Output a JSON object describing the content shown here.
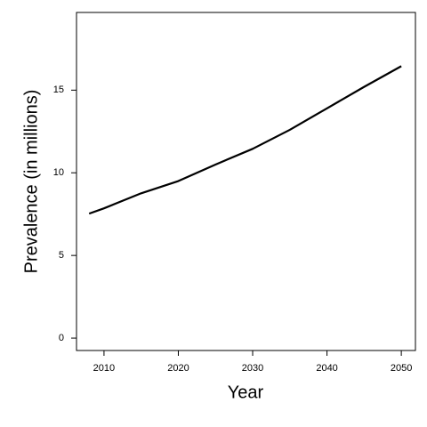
{
  "chart_data": {
    "type": "line",
    "x_label": "Year",
    "y_label": "Prevalence (in millions)",
    "x": [
      2008,
      2010,
      2015,
      2020,
      2025,
      2030,
      2035,
      2040,
      2045,
      2050
    ],
    "values": [
      7.53,
      7.85,
      8.76,
      9.5,
      10.5,
      11.45,
      12.6,
      13.9,
      15.2,
      16.45
    ],
    "color": "#000000",
    "xlim": [
      2006.3,
      2051.9
    ],
    "xticks": [
      2010,
      2020,
      2030,
      2040,
      2050
    ],
    "ylim": [
      -0.75,
      19.7
    ],
    "yticks": [
      0,
      5,
      10,
      15
    ],
    "grid": false
  }
}
